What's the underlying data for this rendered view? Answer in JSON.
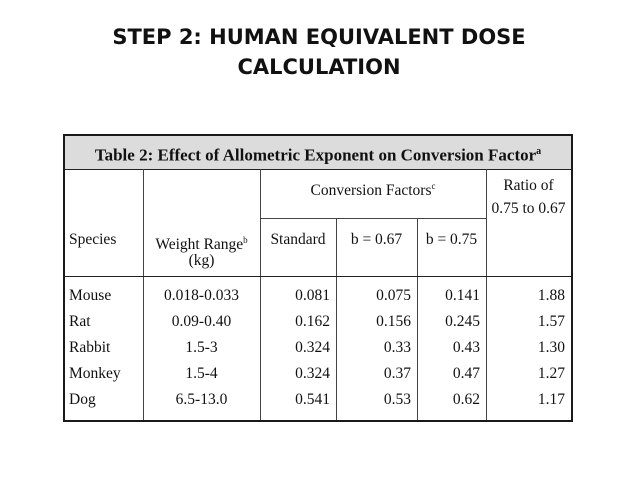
{
  "slide": {
    "title_line1": "STEP 2: HUMAN EQUIVALENT DOSE",
    "title_line2": "CALCULATION"
  },
  "table": {
    "caption": "Table 2:  Effect of Allometric Exponent on Conversion Factor",
    "caption_sup": "a",
    "headers": {
      "species": "Species",
      "weight_range_line1": "Weight Range",
      "weight_range_sup": "b",
      "weight_range_line2": "(kg)",
      "conversion_factors": "Conversion Factors",
      "conversion_factors_sup": "c",
      "standard": "Standard",
      "b067": "b = 0.67",
      "b075": "b = 0.75",
      "ratio_line1": "Ratio of",
      "ratio_line2": "0.75 to 0.67"
    },
    "rows": [
      {
        "species": "Mouse",
        "weight": "0.018-0.033",
        "standard": "0.081",
        "b067": "0.075",
        "b075": "0.141",
        "ratio": "1.88"
      },
      {
        "species": "Rat",
        "weight": "0.09-0.40",
        "standard": "0.162",
        "b067": "0.156",
        "b075": "0.245",
        "ratio": "1.57"
      },
      {
        "species": "Rabbit",
        "weight": "1.5-3",
        "standard": "0.324",
        "b067": "0.33",
        "b075": "0.43",
        "ratio": "1.30"
      },
      {
        "species": "Monkey",
        "weight": "1.5-4",
        "standard": "0.324",
        "b067": "0.37",
        "b075": "0.47",
        "ratio": "1.27"
      },
      {
        "species": "Dog",
        "weight": "6.5-13.0",
        "standard": "0.541",
        "b067": "0.53",
        "b075": "0.62",
        "ratio": "1.17"
      }
    ]
  }
}
